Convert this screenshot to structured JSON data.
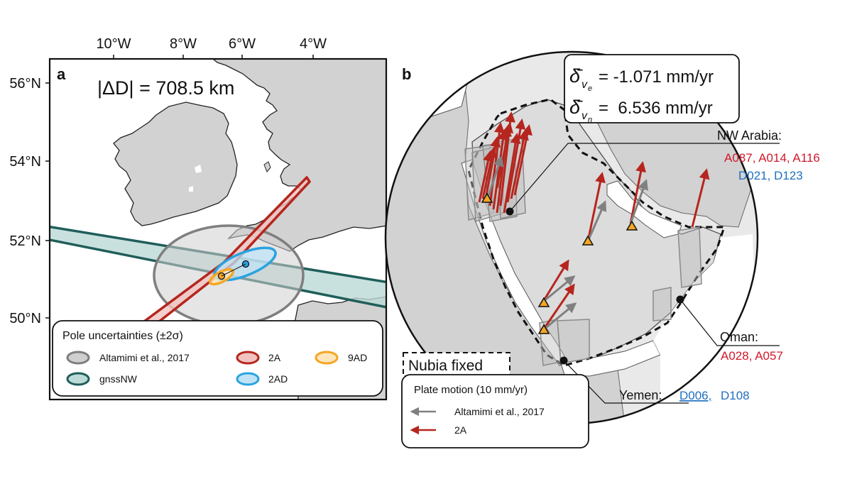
{
  "panel_a": {
    "label": "a",
    "delta_d_text": "|ΔD| = 708.5 km",
    "lon_ticks": [
      "10°W",
      "8°W",
      "6°W",
      "4°W"
    ],
    "lat_ticks": [
      "56°N",
      "54°N",
      "52°N",
      "50°N"
    ],
    "legend": {
      "title": "Pole uncertainties (±2σ)",
      "items": [
        {
          "label": "Altamimi et al., 2017",
          "stroke": "#7f7f7f",
          "fill": "#cfcfcf"
        },
        {
          "label": "2A",
          "stroke": "#b5261e",
          "fill": "#f0c3c0"
        },
        {
          "label": "9AD",
          "stroke": "#f5a623",
          "fill": "#fde6bd"
        },
        {
          "label": "gnssNW",
          "stroke": "#1f5e5a",
          "fill": "#bcdad6"
        },
        {
          "label": "2AD",
          "stroke": "#2aa3e0",
          "fill": "#bfe3f5"
        }
      ]
    }
  },
  "panel_b": {
    "label": "b",
    "stats": [
      {
        "symbol": "δ̄",
        "sub": "v",
        "subsub": "e",
        "value": "= -1.071 mm/yr"
      },
      {
        "symbol": "δ̄",
        "sub": "v",
        "subsub": "n",
        "value": "=  6.536 mm/yr"
      }
    ],
    "nubia_fixed": "Nubia fixed",
    "regions": [
      {
        "name": "NW Arabia:",
        "red": "A087, A014, A116",
        "blue": "D021, D123"
      },
      {
        "name": "Oman:",
        "red": "A028, A057"
      },
      {
        "name": "Yemen:",
        "blue_a": "D006,",
        "blue_b": "D108"
      }
    ],
    "legend": {
      "title": "Plate motion (10 mm/yr)",
      "items": [
        {
          "label": "Altamimi et al., 2017",
          "color": "#808080"
        },
        {
          "label": "2A",
          "color": "#b5261e"
        }
      ]
    }
  },
  "colors": {
    "land": "#d2d2d2",
    "sea": "#ffffff",
    "red": "#b5261e",
    "blue": "#1f6fbf",
    "red_text": "#d0182b",
    "gray_arrow": "#808080",
    "triangle": "#f5a623"
  }
}
